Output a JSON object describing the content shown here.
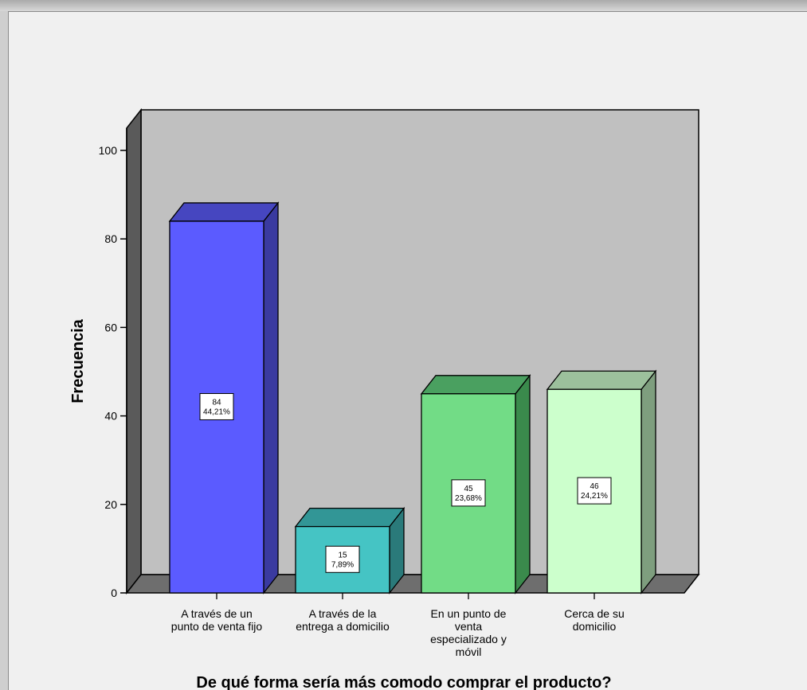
{
  "chart_data": {
    "type": "bar",
    "title": "",
    "xlabel": "De qué forma sería más comodo comprar el producto?",
    "ylabel": "Frecuencia",
    "ylim": [
      0,
      100
    ],
    "yticks": [
      0,
      20,
      40,
      60,
      80,
      100
    ],
    "grid": false,
    "categories": [
      [
        "A través de un",
        "punto de venta fijo"
      ],
      [
        "A través de la",
        "entrega a domicilio"
      ],
      [
        "En un punto de",
        "venta",
        "especializado y",
        "móvil"
      ],
      [
        "Cerca de su",
        "domicilio"
      ]
    ],
    "values": [
      84,
      15,
      45,
      46
    ],
    "percent_labels": [
      "44,21%",
      "7,89%",
      "23,68%",
      "24,21%"
    ],
    "colors": [
      "#5b5bff",
      "#45c4c4",
      "#72dc86",
      "#ccffcc"
    ],
    "side_colors": [
      "#3a3aa0",
      "#2a7a7a",
      "#3a8a4c",
      "#7e9e7e"
    ],
    "top_colors": [
      "#4646c0",
      "#329696",
      "#4aa060",
      "#9cc09c"
    ]
  }
}
